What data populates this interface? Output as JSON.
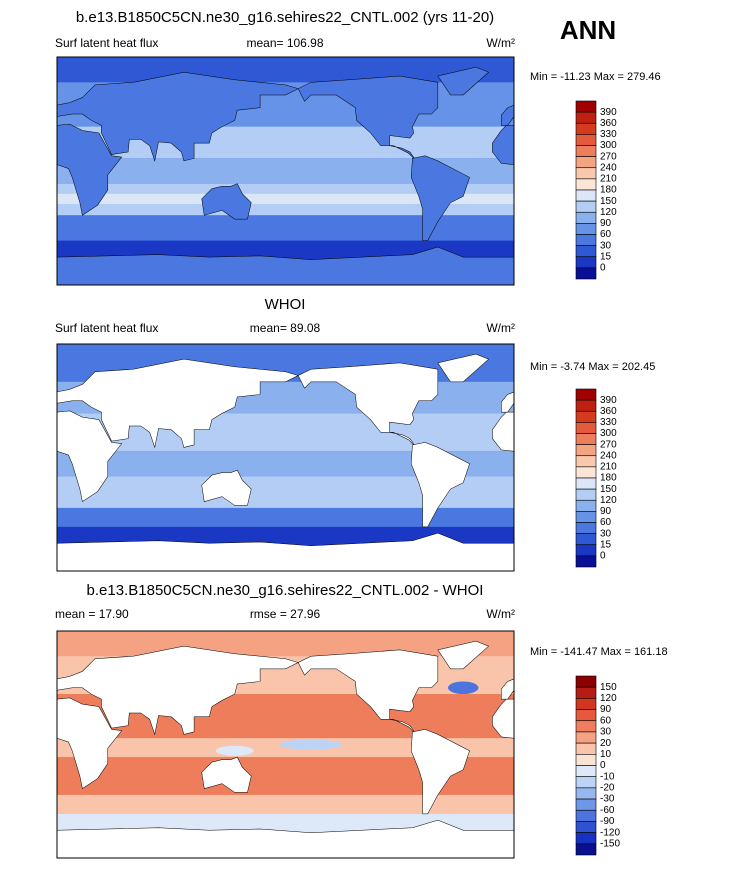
{
  "header": {
    "season": "ANN"
  },
  "panels": [
    {
      "title": "b.e13.B1850C5CN.ne30_g16.sehires22_CNTL.002 (yrs 11-20)",
      "left_label": "Surf latent heat flux",
      "center_label": "mean= 106.98",
      "units": "W/m²",
      "minmax": "Min = -11.23 Max = 279.46",
      "colorbar": {
        "labels": [
          "390",
          "360",
          "330",
          "300",
          "270",
          "240",
          "210",
          "180",
          "150",
          "120",
          "90",
          "60",
          "30",
          "15",
          "0"
        ],
        "colors": [
          "#a00000",
          "#c0200f",
          "#d63a1e",
          "#e55a3a",
          "#ee7d5b",
          "#f4a383",
          "#f9c8ad",
          "#fbe6d6",
          "#dbe6f7",
          "#b3cdf4",
          "#8bb0ee",
          "#6693e7",
          "#4a78e0",
          "#2f58d5",
          "#1a38c4",
          "#0a0f9a"
        ]
      }
    },
    {
      "title": "WHOI",
      "left_label": "Surf latent heat flux",
      "center_label": "mean=  89.08",
      "units": "W/m²",
      "minmax": "Min =  -3.74 Max = 202.45",
      "colorbar": {
        "labels": [
          "390",
          "360",
          "330",
          "300",
          "270",
          "240",
          "210",
          "180",
          "150",
          "120",
          "90",
          "60",
          "30",
          "15",
          "0"
        ],
        "colors": [
          "#a00000",
          "#c0200f",
          "#d63a1e",
          "#e55a3a",
          "#ee7d5b",
          "#f4a383",
          "#f9c8ad",
          "#fbe6d6",
          "#dbe6f7",
          "#b3cdf4",
          "#8bb0ee",
          "#6693e7",
          "#4a78e0",
          "#2f58d5",
          "#1a38c4",
          "#0a0f9a"
        ]
      }
    },
    {
      "title": "b.e13.B1850C5CN.ne30_g16.sehires22_CNTL.002 - WHOI",
      "left_label": "mean =  17.90",
      "center_label": "rmse =  27.96",
      "units": "W/m²",
      "minmax": "Min = -141.47 Max = 161.18",
      "colorbar": {
        "labels": [
          "150",
          "120",
          "90",
          "60",
          "30",
          "20",
          "10",
          "0",
          "-10",
          "-20",
          "-30",
          "-60",
          "-90",
          "-120",
          "-150"
        ],
        "colors": [
          "#8b0000",
          "#b41c14",
          "#d3361f",
          "#e6593a",
          "#f07e5e",
          "#f5a283",
          "#f9c4aa",
          "#fbe3d3",
          "#dde9f8",
          "#bcd3f5",
          "#96b8ef",
          "#6f97e7",
          "#4c74de",
          "#2e52d2",
          "#1732c0",
          "#0a0f8f"
        ]
      }
    }
  ]
}
